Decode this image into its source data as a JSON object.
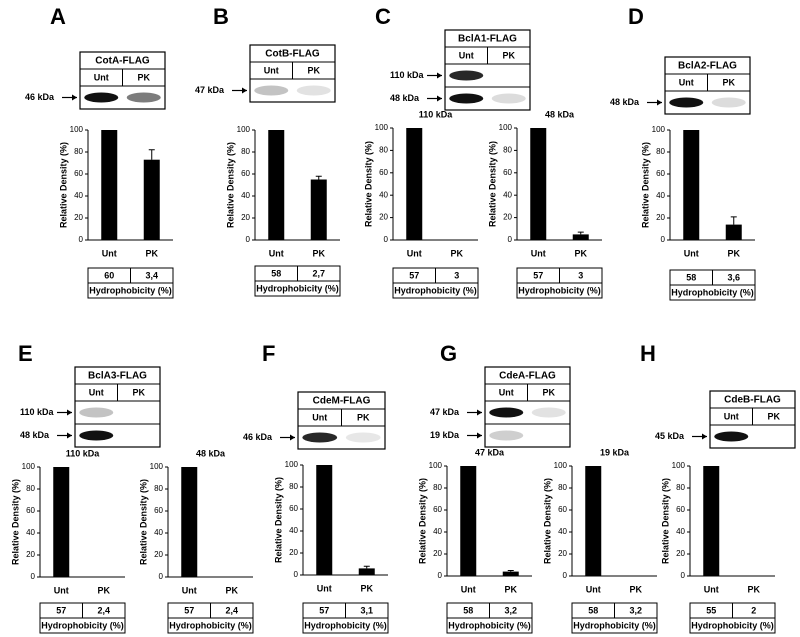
{
  "panels": [
    {
      "letter": "A",
      "protein": "CotA-FLAG",
      "lanes": [
        "Unt",
        "PK"
      ],
      "bands": [
        "46 kDa"
      ]
    },
    {
      "letter": "B",
      "protein": "CotB-FLAG",
      "lanes": [
        "Unt",
        "PK"
      ],
      "bands": [
        "47 kDa"
      ]
    },
    {
      "letter": "C",
      "protein": "BclA1-FLAG",
      "lanes": [
        "Unt",
        "PK"
      ],
      "bands": [
        "110 kDa",
        "48 kDa"
      ]
    },
    {
      "letter": "D",
      "protein": "BclA2-FLAG",
      "lanes": [
        "Unt",
        "PK"
      ],
      "bands": [
        "48 kDa"
      ]
    },
    {
      "letter": "E",
      "protein": "BclA3-FLAG",
      "lanes": [
        "Unt",
        "PK"
      ],
      "bands": [
        "110 kDa",
        "48 kDa"
      ]
    },
    {
      "letter": "F",
      "protein": "CdeM-FLAG",
      "lanes": [
        "Unt",
        "PK"
      ],
      "bands": [
        "46 kDa"
      ]
    },
    {
      "letter": "G",
      "protein": "CdeA-FLAG",
      "lanes": [
        "Unt",
        "PK"
      ],
      "bands": [
        "47 kDa",
        "19 kDa"
      ]
    },
    {
      "letter": "H",
      "protein": "CdeB-FLAG",
      "lanes": [
        "Unt",
        "PK"
      ],
      "bands": [
        "45 kDa"
      ]
    }
  ],
  "chart_data": [
    {
      "type": "bar",
      "categories": [
        "Unt",
        "PK"
      ],
      "values": [
        100,
        73
      ],
      "errors": [
        null,
        9
      ],
      "y_label": "Relative Density (%)",
      "ylim": [
        0,
        100
      ],
      "yticks": [
        0,
        20,
        40,
        60,
        80,
        100
      ],
      "color": "#000000",
      "table": {
        "cells": [
          "60",
          "3,4"
        ],
        "label": "Hydrophobicity (%)"
      }
    },
    {
      "type": "bar",
      "categories": [
        "Unt",
        "PK"
      ],
      "values": [
        100,
        55
      ],
      "errors": [
        null,
        3
      ],
      "y_label": "Relative Density (%)",
      "ylim": [
        0,
        100
      ],
      "yticks": [
        0,
        20,
        40,
        60,
        80,
        100
      ],
      "color": "#000000",
      "table": {
        "cells": [
          "58",
          "2,7"
        ],
        "label": "Hydrophobicity (%)"
      }
    },
    {
      "type": "bar",
      "title": "110 kDa",
      "categories": [
        "Unt",
        "PK"
      ],
      "values": [
        100,
        0
      ],
      "errors": [
        null,
        null
      ],
      "y_label": "Relative Density (%)",
      "ylim": [
        0,
        100
      ],
      "yticks": [
        0,
        20,
        40,
        60,
        80,
        100
      ],
      "color": "#000000",
      "table": {
        "cells": [
          "57",
          "3"
        ],
        "label": "Hydrophobicity (%)"
      }
    },
    {
      "type": "bar",
      "title": "48 kDa",
      "categories": [
        "Unt",
        "PK"
      ],
      "values": [
        100,
        5
      ],
      "errors": [
        null,
        2
      ],
      "y_label": "Relative Density (%)",
      "ylim": [
        0,
        100
      ],
      "yticks": [
        0,
        20,
        40,
        60,
        80,
        100
      ],
      "color": "#000000",
      "table": {
        "cells": [
          "57",
          "3"
        ],
        "label": "Hydrophobicity (%)"
      }
    },
    {
      "type": "bar",
      "categories": [
        "Unt",
        "PK"
      ],
      "values": [
        100,
        14
      ],
      "errors": [
        null,
        7
      ],
      "y_label": "Relative Density (%)",
      "ylim": [
        0,
        100
      ],
      "yticks": [
        0,
        20,
        40,
        60,
        80,
        100
      ],
      "color": "#000000",
      "table": {
        "cells": [
          "58",
          "3,6"
        ],
        "label": "Hydrophobicity (%)"
      }
    },
    {
      "type": "bar",
      "title": "110 kDa",
      "categories": [
        "Unt",
        "PK"
      ],
      "values": [
        100,
        0
      ],
      "errors": [
        null,
        null
      ],
      "y_label": "Relative Density (%)",
      "ylim": [
        0,
        100
      ],
      "yticks": [
        0,
        20,
        40,
        60,
        80,
        100
      ],
      "color": "#000000",
      "table": {
        "cells": [
          "57",
          "2,4"
        ],
        "label": "Hydrophobicity (%)"
      }
    },
    {
      "type": "bar",
      "title": "48 kDa",
      "categories": [
        "Unt",
        "PK"
      ],
      "values": [
        100,
        0
      ],
      "errors": [
        null,
        null
      ],
      "y_label": "Relative Density (%)",
      "ylim": [
        0,
        100
      ],
      "yticks": [
        0,
        20,
        40,
        60,
        80,
        100
      ],
      "color": "#000000",
      "table": {
        "cells": [
          "57",
          "2,4"
        ],
        "label": "Hydrophobicity (%)"
      }
    },
    {
      "type": "bar",
      "categories": [
        "Unt",
        "PK"
      ],
      "values": [
        100,
        6
      ],
      "errors": [
        null,
        2
      ],
      "y_label": "Relative Density (%)",
      "ylim": [
        0,
        100
      ],
      "yticks": [
        0,
        20,
        40,
        60,
        80,
        100
      ],
      "color": "#000000",
      "table": {
        "cells": [
          "57",
          "3,1"
        ],
        "label": "Hydrophobicity (%)"
      }
    },
    {
      "type": "bar",
      "title": "47 kDa",
      "categories": [
        "Unt",
        "PK"
      ],
      "values": [
        100,
        4
      ],
      "errors": [
        null,
        1
      ],
      "y_label": "Relative Density (%)",
      "ylim": [
        0,
        100
      ],
      "yticks": [
        0,
        20,
        40,
        60,
        80,
        100
      ],
      "color": "#000000",
      "table": {
        "cells": [
          "58",
          "3,2"
        ],
        "label": "Hydrophobicity (%)"
      }
    },
    {
      "type": "bar",
      "title": "19 kDa",
      "categories": [
        "Unt",
        "PK"
      ],
      "values": [
        100,
        0
      ],
      "errors": [
        null,
        null
      ],
      "y_label": "Relative Density (%)",
      "ylim": [
        0,
        100
      ],
      "yticks": [
        0,
        20,
        40,
        60,
        80,
        100
      ],
      "color": "#000000",
      "table": {
        "cells": [
          "58",
          "3,2"
        ],
        "label": "Hydrophobicity (%)"
      }
    },
    {
      "type": "bar",
      "categories": [
        "Unt",
        "PK"
      ],
      "values": [
        100,
        0
      ],
      "errors": [
        null,
        null
      ],
      "y_label": "Relative Density (%)",
      "ylim": [
        0,
        100
      ],
      "yticks": [
        0,
        20,
        40,
        60,
        80,
        100
      ],
      "color": "#000000",
      "table": {
        "cells": [
          "55",
          "2"
        ],
        "label": "Hydrophobicity (%)"
      }
    }
  ]
}
